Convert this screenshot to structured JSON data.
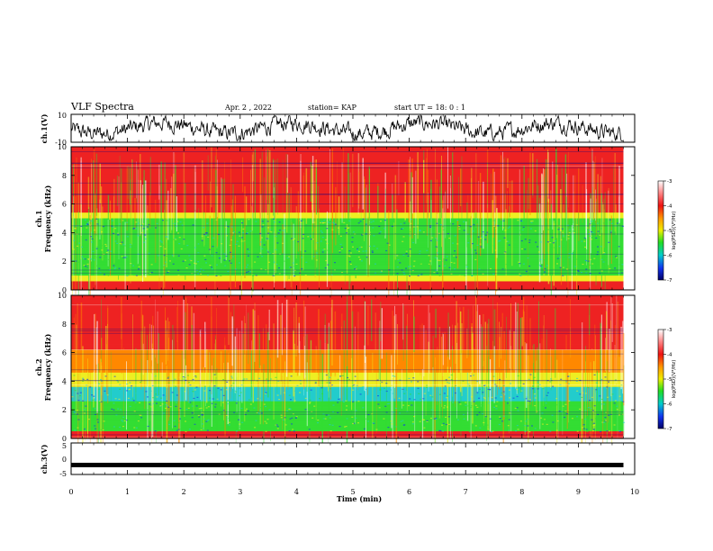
{
  "header": {
    "title": "VLF Spectra",
    "date": "Apr. 2  , 2022",
    "station": "station= KAP",
    "start": "start  UT  =   18: 0  : 1"
  },
  "chart_data": [
    {
      "type": "line",
      "name": "ch1-waveform",
      "ylabel": "ch.1(V)",
      "ylim": [
        -10,
        10
      ],
      "yticks": [
        "10",
        "-10"
      ],
      "xlim": [
        0,
        10
      ],
      "description_series": "noisy waveform oscillating around 0 V, amplitude ~4-8 V, from 0 to 9.8 min"
    },
    {
      "type": "heatmap",
      "name": "ch1-spectrogram",
      "ylabel": "ch.1\nFrequency (kHz)",
      "ylabel_lines": [
        "ch.1",
        "Frequency (kHz)"
      ],
      "ylim": [
        0,
        10
      ],
      "yticks": [
        "0",
        "2",
        "4",
        "6",
        "8",
        "10"
      ],
      "xlim": [
        0,
        9.8
      ],
      "colorbar": {
        "label": "log(PSD)(V²/Hz)",
        "ticks": [
          "-3",
          "-4",
          "-5",
          "-6",
          "-7"
        ],
        "range": [
          -7,
          -3
        ]
      }
    },
    {
      "type": "heatmap",
      "name": "ch2-spectrogram",
      "ylabel_lines": [
        "ch.2",
        "Frequency (kHz)"
      ],
      "ylim": [
        0,
        10
      ],
      "yticks": [
        "0",
        "2",
        "4",
        "6",
        "8",
        "10"
      ],
      "xlim": [
        0,
        9.8
      ],
      "colorbar": {
        "label": "log(PSD)(V²/Hz)",
        "ticks": [
          "-3",
          "-4",
          "-5",
          "-6",
          "-7"
        ],
        "range": [
          -7,
          -3
        ]
      }
    },
    {
      "type": "line",
      "name": "ch3-waveform",
      "ylabel": "ch.3(V)",
      "ylim": [
        -5,
        5
      ],
      "yticks": [
        "5",
        "0",
        "-5"
      ],
      "level": -2,
      "xlim": [
        0,
        10
      ],
      "xticks": [
        "0",
        "1",
        "2",
        "3",
        "4",
        "5",
        "6",
        "7",
        "8",
        "9",
        "10"
      ],
      "xlabel": "Time (min)"
    }
  ],
  "colors": {
    "red": "#ee2222",
    "orange": "#ff8800",
    "yellow": "#eeee22",
    "green": "#33dd33",
    "cyan": "#22cccc",
    "blue": "#1133ee",
    "navy": "#000088"
  }
}
